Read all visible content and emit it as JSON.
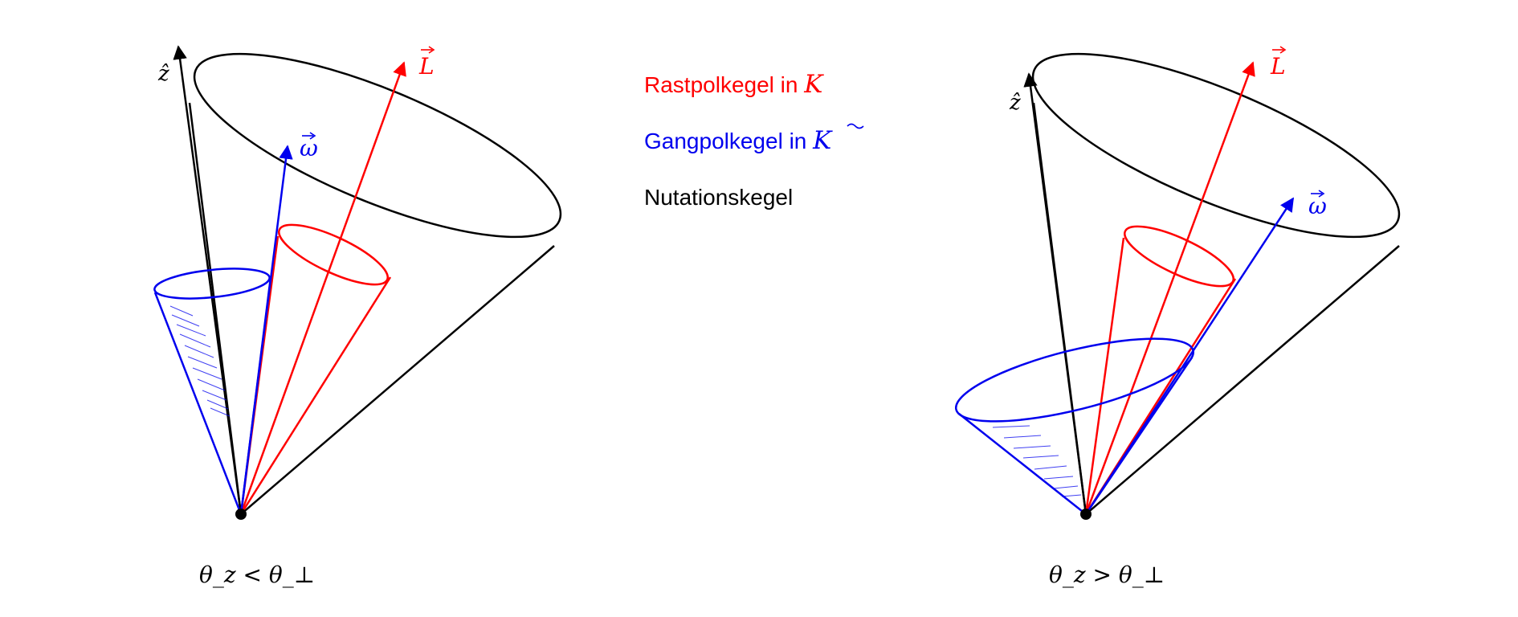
{
  "legend": {
    "rastpol": {
      "text": "Rastpolkegel in ",
      "symbol": "K",
      "color": "#ff0000"
    },
    "gangpol": {
      "text": "Gangpolkegel in ",
      "symbol": "K",
      "color": "#0000ee"
    },
    "nutation": {
      "text": "Nutationskegel",
      "color": "#000000"
    }
  },
  "left_diagram": {
    "z_label": "ẑ",
    "L_label": "L",
    "omega_label": "ω",
    "caption": "θ_z < θ_⊥"
  },
  "right_diagram": {
    "z_label": "ẑ",
    "L_label": "L",
    "omega_label": "ω",
    "caption": "θ_z > θ_⊥"
  },
  "colors": {
    "nutation": "#000000",
    "rastpol": "#ff0000",
    "gangpol": "#0000ee"
  }
}
